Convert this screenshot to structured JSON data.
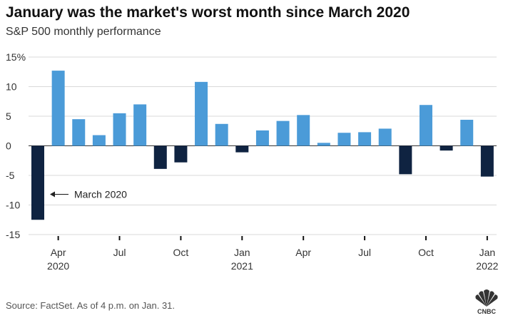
{
  "header": {
    "title": "January was the market's worst month since March 2020",
    "subtitle": "S&P 500 monthly performance"
  },
  "footer": {
    "source": "Source: FactSet. As of 4 p.m. on Jan. 31.",
    "logo_text": "CNBC"
  },
  "colors": {
    "positive": "#4b9bd8",
    "negative": "#0f2341",
    "grid": "#d9d9d9",
    "zero_line": "#333333"
  },
  "chart_data": {
    "type": "bar",
    "title": "January was the market's worst month since March 2020",
    "subtitle": "S&P 500 monthly performance",
    "ylim": [
      -15,
      15
    ],
    "y_ticks": [
      15,
      10,
      5,
      0,
      -5,
      -10,
      -15
    ],
    "y_tick_labels": [
      "15%",
      "10",
      "5",
      "0",
      "-5",
      "-10",
      "-15"
    ],
    "grid": true,
    "categories": [
      "Mar 2020",
      "Apr 2020",
      "May 2020",
      "Jun 2020",
      "Jul 2020",
      "Aug 2020",
      "Sep 2020",
      "Oct 2020",
      "Nov 2020",
      "Dec 2020",
      "Jan 2021",
      "Feb 2021",
      "Mar 2021",
      "Apr 2021",
      "May 2021",
      "Jun 2021",
      "Jul 2021",
      "Aug 2021",
      "Sep 2021",
      "Oct 2021",
      "Nov 2021",
      "Dec 2021",
      "Jan 2022"
    ],
    "values": [
      -12.5,
      12.7,
      4.5,
      1.8,
      5.5,
      7.0,
      -3.9,
      -2.8,
      10.8,
      3.7,
      -1.1,
      2.6,
      4.2,
      5.2,
      0.5,
      2.2,
      2.3,
      2.9,
      -4.8,
      6.9,
      -0.8,
      4.4,
      -5.2
    ],
    "x_tick_labels": [
      {
        "index": 1,
        "line1": "Apr",
        "line2": "2020"
      },
      {
        "index": 4,
        "line1": "Jul",
        "line2": ""
      },
      {
        "index": 7,
        "line1": "Oct",
        "line2": ""
      },
      {
        "index": 10,
        "line1": "Jan",
        "line2": "2021"
      },
      {
        "index": 13,
        "line1": "Apr",
        "line2": ""
      },
      {
        "index": 16,
        "line1": "Jul",
        "line2": ""
      },
      {
        "index": 19,
        "line1": "Oct",
        "line2": ""
      },
      {
        "index": 22,
        "line1": "Jan",
        "line2": "2022"
      }
    ],
    "annotations": [
      {
        "index": 0,
        "value": -8.2,
        "text": "March 2020"
      }
    ]
  }
}
